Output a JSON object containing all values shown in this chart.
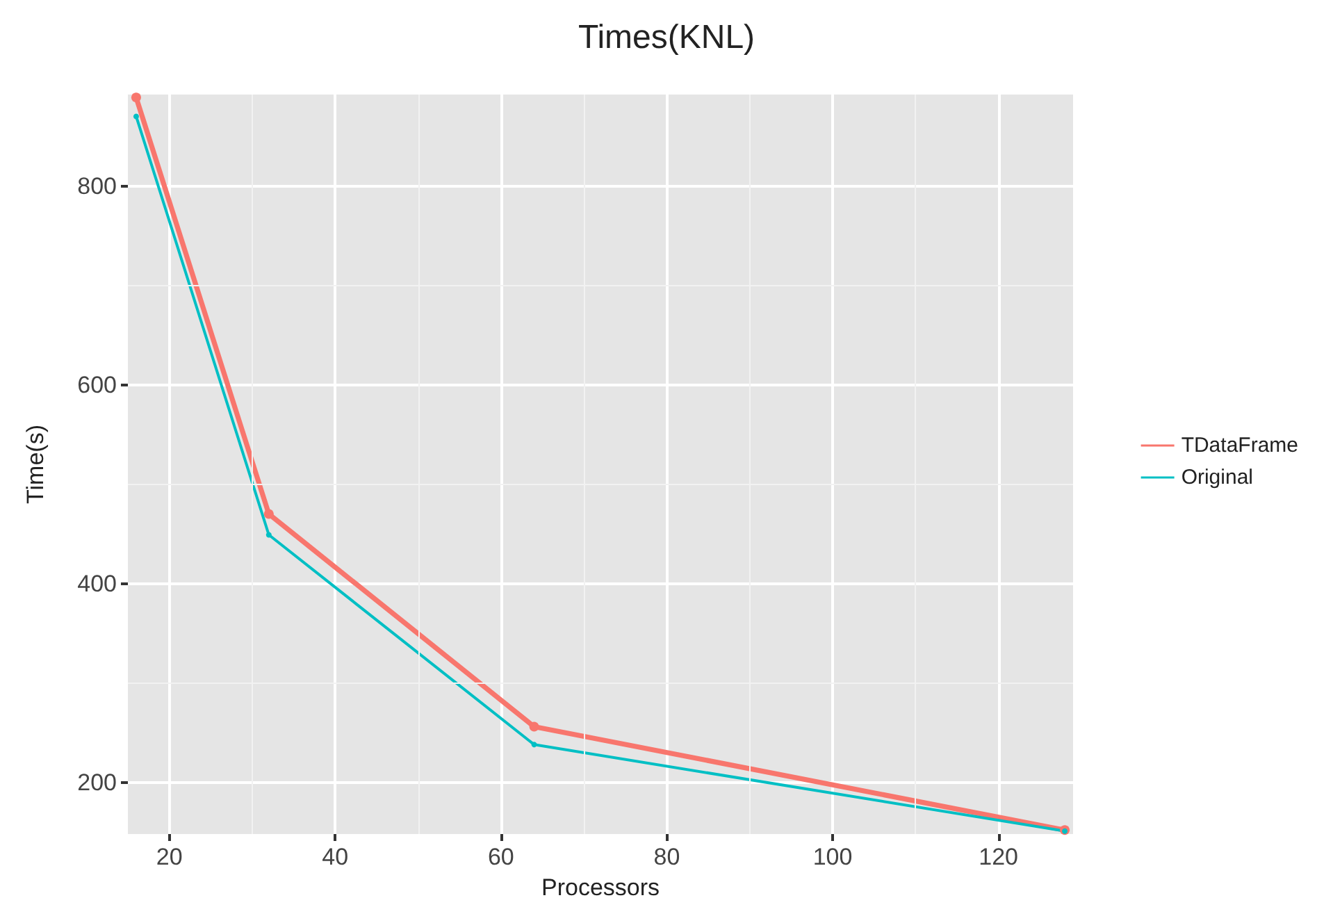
{
  "chart_data": {
    "type": "line",
    "title": "Times(KNL)",
    "xlabel": "Processors",
    "ylabel": "Time(s)",
    "x": [
      16,
      32,
      64,
      128
    ],
    "series": [
      {
        "name": "TDataFrame",
        "color": "#f8766d",
        "values": [
          889,
          470,
          256,
          152
        ]
      },
      {
        "name": "Original",
        "color": "#00bfc4",
        "values": [
          870,
          449,
          238,
          151
        ]
      }
    ],
    "xlim": [
      15,
      129
    ],
    "xticks": [
      20,
      40,
      60,
      80,
      100,
      120
    ],
    "ylim": [
      148,
      892
    ],
    "yticks": [
      200,
      400,
      600,
      800
    ],
    "grid": true,
    "legend": "right",
    "marker": "circle",
    "line_style": "solid"
  }
}
